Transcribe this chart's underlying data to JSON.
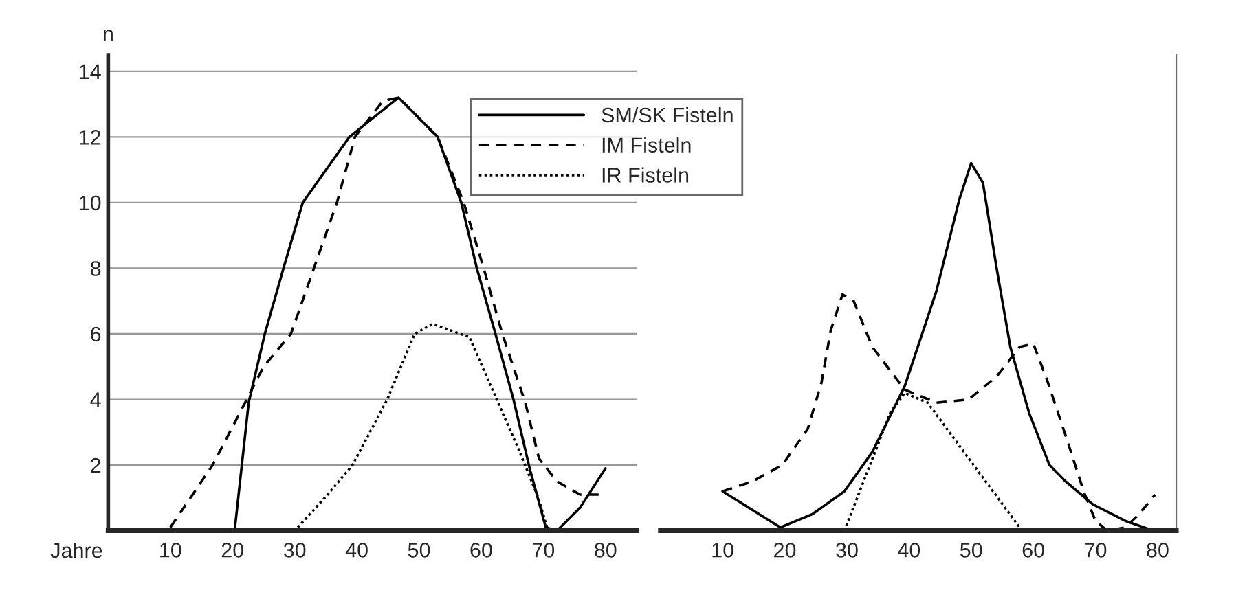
{
  "chart_data": [
    {
      "type": "line",
      "xlabel": "Jahre",
      "ylabel": "n",
      "xlim": [
        0,
        85
      ],
      "xticks": [
        10,
        20,
        30,
        40,
        50,
        60,
        70,
        80
      ],
      "ylim": [
        0,
        14.5
      ],
      "yticks": [
        2,
        4,
        6,
        8,
        10,
        12,
        14
      ],
      "grid": "y",
      "legend": "top right",
      "series": [
        {
          "name": "SM/SK Fisteln",
          "color": "#000000",
          "line_style": "solid",
          "x": [
            20.4,
            22.6,
            25.2,
            28.2,
            31.3,
            38.8,
            46.7,
            53,
            56.8,
            59.3,
            62.3,
            65.2,
            67.8,
            70.4,
            72.2,
            75.9,
            80
          ],
          "values": [
            0.1,
            3.9,
            6.0,
            8.0,
            10.0,
            12.0,
            13.2,
            12.0,
            10.0,
            8.0,
            6.0,
            4.0,
            1.9,
            0.1,
            0,
            0.7,
            1.9
          ]
        },
        {
          "name": "IM Fisteln",
          "color": "#000000",
          "line_style": "dashed",
          "x": [
            10,
            16.8,
            21.2,
            25,
            29.4,
            33.1,
            36.8,
            39.7,
            44.2,
            46.7,
            53,
            57.2,
            60.4,
            63.4,
            67.1,
            69.3,
            72.2,
            75.9,
            78.9
          ],
          "values": [
            0.1,
            2.0,
            3.6,
            5.0,
            6.0,
            8.0,
            10.0,
            12.0,
            13.1,
            13.2,
            12.0,
            10.0,
            8.0,
            6.0,
            3.9,
            2.2,
            1.5,
            1.1,
            1.1
          ]
        },
        {
          "name": "IR Fisteln",
          "color": "#000000",
          "line_style": "dotted",
          "x": [
            30.5,
            35.3,
            39.3,
            44.9,
            49.3,
            52.2,
            58.1,
            62.5,
            66.2,
            69.2,
            70.6
          ],
          "values": [
            0.1,
            1.1,
            2.0,
            4.0,
            6.0,
            6.3,
            5.9,
            4.0,
            2.4,
            1.0,
            0.1
          ]
        }
      ]
    },
    {
      "type": "line",
      "xlim": [
        0,
        83
      ],
      "xticks": [
        10,
        20,
        30,
        40,
        50,
        60,
        70,
        80
      ],
      "ylim": [
        0,
        14.5
      ],
      "grid": "y",
      "tick_labels": "x",
      "series": [
        {
          "color": "#000000",
          "line_style": "solid",
          "x": [
            10,
            19.3,
            24.4,
            29.6,
            34.1,
            39.3,
            44.4,
            48.1,
            50,
            51.9,
            54.1,
            56.3,
            59.3,
            62.6,
            65.2,
            69.6,
            74.8,
            79.3
          ],
          "values": [
            1.2,
            0.1,
            0.5,
            1.2,
            2.4,
            4.4,
            7.3,
            10.1,
            11.2,
            10.6,
            8.0,
            5.6,
            3.6,
            2.0,
            1.5,
            0.8,
            0.3,
            0
          ]
        },
        {
          "color": "#000000",
          "line_style": "dashed",
          "x": [
            10,
            14.8,
            19.6,
            23.7,
            25.9,
            27.4,
            29.3,
            31.1,
            34.1,
            39.3,
            44.4,
            49.6,
            54.1,
            57.8,
            60,
            62.2,
            65.2,
            68.1,
            70,
            71.9,
            74.8,
            77,
            79.6
          ],
          "values": [
            1.2,
            1.5,
            2.0,
            3.1,
            4.5,
            6.1,
            7.2,
            7.0,
            5.6,
            4.3,
            3.9,
            4.0,
            4.7,
            5.6,
            5.7,
            4.6,
            2.9,
            1.2,
            0.3,
            0,
            0.1,
            0.5,
            1.1
          ]
        },
        {
          "color": "#000000",
          "line_style": "dotted",
          "x": [
            29.6,
            33.3,
            37,
            39.3,
            43,
            50.4,
            57.8
          ],
          "values": [
            0,
            1.8,
            3.6,
            4.2,
            3.9,
            2.0,
            0.1
          ]
        }
      ]
    }
  ]
}
